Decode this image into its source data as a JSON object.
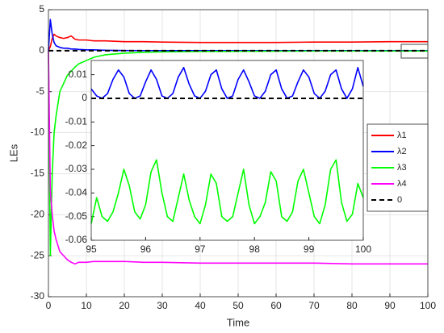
{
  "chart_data": [
    {
      "type": "line",
      "xlabel": "Time",
      "ylabel": "LEs",
      "x": [
        0,
        0.5,
        1,
        1.5,
        2,
        3,
        4,
        5,
        6,
        7,
        8,
        10,
        12,
        15,
        20,
        25,
        30,
        40,
        50,
        60,
        70,
        80,
        90,
        100
      ],
      "series": [
        {
          "name": "λ1",
          "color": "#ff0000",
          "values": [
            0,
            0.5,
            1.5,
            2,
            1.8,
            1.6,
            1.5,
            1.6,
            1.8,
            1.4,
            1.3,
            1.3,
            1.2,
            1.2,
            1.1,
            1.1,
            1.05,
            1,
            1,
            1,
            1.05,
            1.05,
            1.1,
            1.1
          ]
        },
        {
          "name": "λ2",
          "color": "#0000ff",
          "values": [
            0,
            3.8,
            2,
            1,
            0.6,
            0.4,
            0.3,
            0.3,
            0.2,
            0.2,
            0.15,
            0.1,
            0.1,
            0.05,
            0.02,
            0.01,
            0.01,
            0.005,
            0.005,
            0.003,
            0.003,
            0.003,
            0.002,
            0.002
          ]
        },
        {
          "name": "λ3",
          "color": "#00ff00",
          "values": [
            0,
            -25,
            -15,
            -10,
            -8,
            -5,
            -4,
            -3,
            -2.5,
            -2,
            -1.6,
            -1.2,
            -0.8,
            -0.5,
            -0.3,
            -0.2,
            -0.15,
            -0.1,
            -0.08,
            -0.06,
            -0.05,
            -0.05,
            -0.04,
            -0.04
          ]
        },
        {
          "name": "λ4",
          "color": "#ff00ff",
          "values": [
            0,
            -17,
            -20,
            -22,
            -23,
            -24.5,
            -25,
            -25.5,
            -25.8,
            -26,
            -25.8,
            -25.8,
            -25.7,
            -25.7,
            -25.7,
            -25.8,
            -25.8,
            -25.9,
            -25.9,
            -25.9,
            -25.9,
            -26,
            -26,
            -26
          ]
        },
        {
          "name": "0",
          "color": "#000000",
          "style": "dashed",
          "values": [
            0,
            0,
            0,
            0,
            0,
            0,
            0,
            0,
            0,
            0,
            0,
            0,
            0,
            0,
            0,
            0,
            0,
            0,
            0,
            0,
            0,
            0,
            0,
            0
          ]
        }
      ],
      "xlim": [
        0,
        100
      ],
      "xticks": [
        0,
        10,
        20,
        30,
        40,
        50,
        60,
        70,
        80,
        90,
        100
      ],
      "ylim": [
        -30,
        5
      ],
      "yticks": [
        -30,
        -25,
        -20,
        -15,
        -10,
        -5,
        0,
        5
      ],
      "grid": true,
      "legend": "right"
    },
    {
      "type": "line",
      "x": [
        95,
        95.1,
        95.2,
        95.3,
        95.4,
        95.5,
        95.6,
        95.7,
        95.8,
        95.9,
        96,
        96.1,
        96.2,
        96.3,
        96.4,
        96.5,
        96.6,
        96.7,
        96.8,
        96.9,
        97,
        97.1,
        97.2,
        97.3,
        97.4,
        97.5,
        97.6,
        97.7,
        97.8,
        97.9,
        98,
        98.1,
        98.2,
        98.3,
        98.4,
        98.5,
        98.6,
        98.7,
        98.8,
        98.9,
        99,
        99.1,
        99.2,
        99.3,
        99.4,
        99.5,
        99.6,
        99.7,
        99.8,
        99.9,
        100
      ],
      "series": [
        {
          "color": "#0000ff",
          "values": [
            0.004,
            0.001,
            0,
            0.002,
            0.008,
            0.012,
            0.009,
            0.002,
            0,
            0.001,
            0.007,
            0.012,
            0.008,
            0.001,
            0,
            0.002,
            0.009,
            0.013,
            0.006,
            0.001,
            0,
            0.003,
            0.01,
            0.012,
            0.004,
            0,
            0.001,
            0.008,
            0.012,
            0.007,
            0.001,
            0,
            0.003,
            0.01,
            0.012,
            0.004,
            0,
            0.001,
            0.007,
            0.012,
            0.009,
            0.002,
            0,
            0.003,
            0.01,
            0.012,
            0.004,
            0,
            0.004,
            0.013,
            0.005
          ]
        },
        {
          "color": "#00ff00",
          "values": [
            -0.053,
            -0.042,
            -0.05,
            -0.052,
            -0.048,
            -0.04,
            -0.03,
            -0.037,
            -0.048,
            -0.051,
            -0.045,
            -0.031,
            -0.026,
            -0.04,
            -0.05,
            -0.052,
            -0.042,
            -0.032,
            -0.043,
            -0.05,
            -0.053,
            -0.045,
            -0.032,
            -0.036,
            -0.05,
            -0.052,
            -0.05,
            -0.04,
            -0.03,
            -0.045,
            -0.053,
            -0.05,
            -0.044,
            -0.031,
            -0.035,
            -0.05,
            -0.052,
            -0.048,
            -0.035,
            -0.03,
            -0.04,
            -0.05,
            -0.053,
            -0.045,
            -0.03,
            -0.026,
            -0.044,
            -0.052,
            -0.049,
            -0.036,
            -0.042
          ]
        },
        {
          "color": "#000000",
          "style": "dashed",
          "values": [
            0,
            0,
            0,
            0,
            0,
            0,
            0,
            0,
            0,
            0,
            0,
            0,
            0,
            0,
            0,
            0,
            0,
            0,
            0,
            0,
            0,
            0,
            0,
            0,
            0,
            0,
            0,
            0,
            0,
            0,
            0,
            0,
            0,
            0,
            0,
            0,
            0,
            0,
            0,
            0,
            0,
            0,
            0,
            0,
            0,
            0,
            0,
            0,
            0,
            0,
            0
          ]
        }
      ],
      "xlim": [
        95,
        100
      ],
      "xticks": [
        95,
        96,
        97,
        98,
        99,
        100
      ],
      "ylim": [
        -0.06,
        0.016
      ],
      "yticks": [
        -0.06,
        -0.05,
        -0.04,
        -0.03,
        -0.02,
        -0.01,
        0,
        0.01
      ],
      "grid": false
    }
  ]
}
